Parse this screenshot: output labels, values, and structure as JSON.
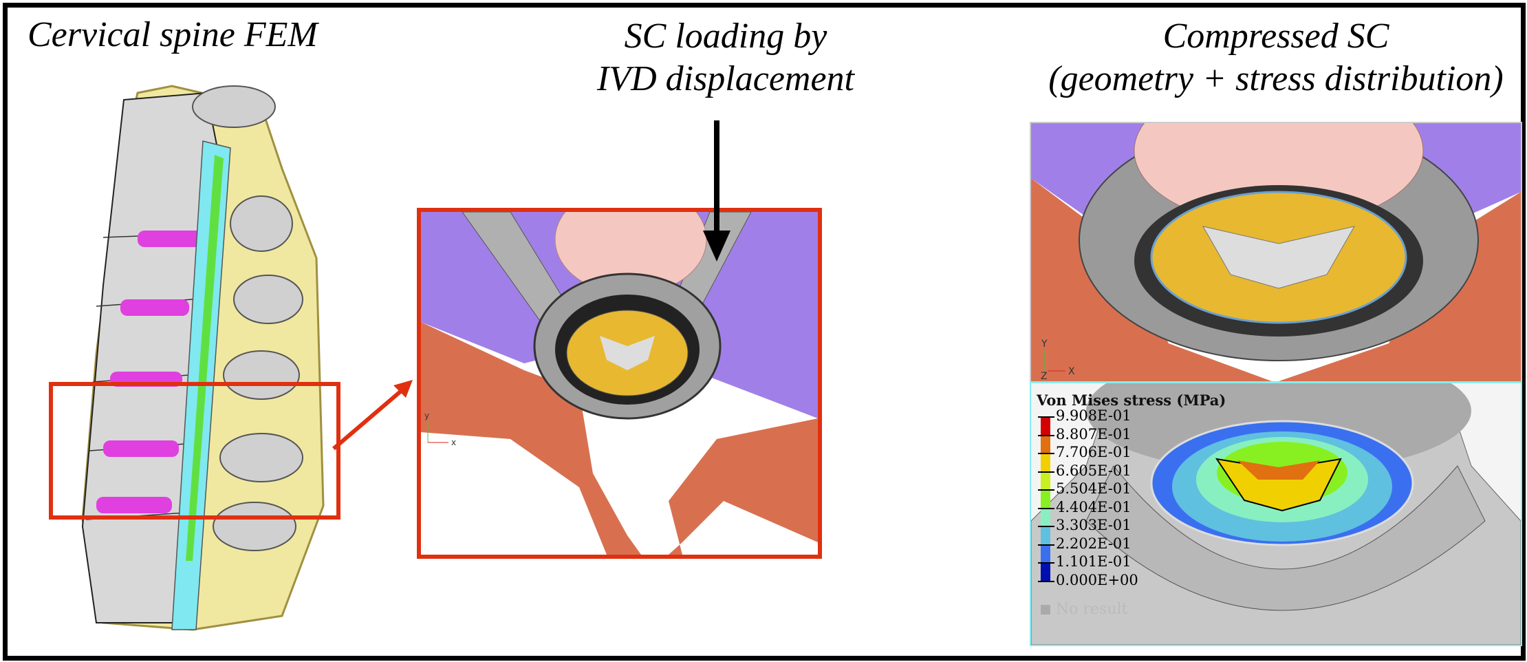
{
  "titles": {
    "left": "Cervical spine FEM",
    "middle_line1": "SC loading by",
    "middle_line2": "IVD displacement",
    "right_line1": "Compressed SC",
    "right_line2": "(geometry + stress distribution)"
  },
  "axes_triad": {
    "y": "Y",
    "z": "Z",
    "x": "X"
  },
  "legend": {
    "title": "Von Mises stress (MPa)",
    "values": [
      "9.908E-01",
      "8.807E-01",
      "7.706E-01",
      "6.605E-01",
      "5.504E-01",
      "4.404E-01",
      "3.303E-01",
      "2.202E-01",
      "1.101E-01",
      "0.000E+00"
    ],
    "colors": [
      "#d40000",
      "#e07010",
      "#f0d000",
      "#c8f020",
      "#88f020",
      "#88f0c0",
      "#60c0e0",
      "#3a70f0",
      "#0010b0"
    ],
    "no_result": "No result"
  },
  "colors": {
    "highlight_box": "#e03010",
    "disc": "#e040e0",
    "spinal_cord": "#80e8f0",
    "vertebra": "#d8d8d8",
    "ligament": "#f0e8a0",
    "cord_mesh": "#e8b830",
    "dura": "#909090",
    "bone_lower": "#d87050",
    "muscle": "#a080e8"
  }
}
